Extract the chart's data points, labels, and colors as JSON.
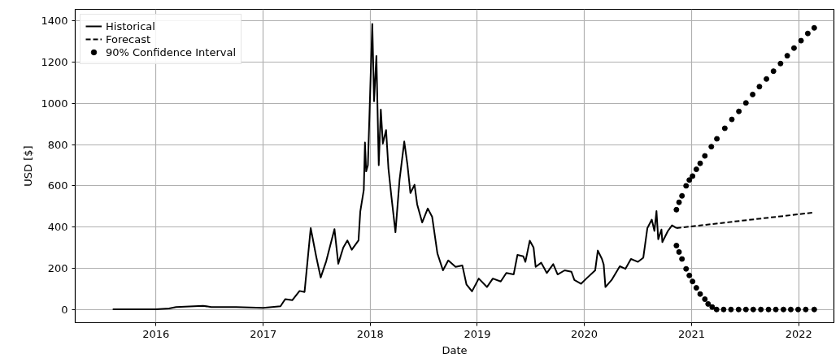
{
  "chart_data": {
    "type": "line",
    "xlabel": "Date",
    "ylabel": "USD [$]",
    "xlim": [
      "2015-04-01",
      "2022-05-01"
    ],
    "ylim": [
      -64,
      1456
    ],
    "xticks": [
      {
        "value": "2016-01-01",
        "label": "2016"
      },
      {
        "value": "2017-01-01",
        "label": "2017"
      },
      {
        "value": "2018-01-01",
        "label": "2018"
      },
      {
        "value": "2019-01-01",
        "label": "2019"
      },
      {
        "value": "2020-01-01",
        "label": "2020"
      },
      {
        "value": "2021-01-01",
        "label": "2021"
      },
      {
        "value": "2022-01-01",
        "label": "2022"
      }
    ],
    "yticks": [
      0,
      200,
      400,
      600,
      800,
      1000,
      1200,
      1400
    ],
    "grid": true,
    "legend": "top left",
    "series": [
      {
        "name": "Historical",
        "color": "#000000",
        "line_style": "solid",
        "x": [
          "2015-08-07",
          "2015-11-01",
          "2016-01-01",
          "2016-02-15",
          "2016-03-10",
          "2016-06-10",
          "2016-07-08",
          "2016-10-01",
          "2017-01-01",
          "2017-03-01",
          "2017-03-17",
          "2017-04-10",
          "2017-05-05",
          "2017-05-22",
          "2017-06-12",
          "2017-07-01",
          "2017-07-16",
          "2017-08-04",
          "2017-09-01",
          "2017-09-14",
          "2017-10-01",
          "2017-10-15",
          "2017-10-30",
          "2017-11-22",
          "2017-11-28",
          "2017-12-10",
          "2017-12-14",
          "2017-12-18",
          "2017-12-24",
          "2018-01-08",
          "2018-01-14",
          "2018-01-22",
          "2018-01-30",
          "2018-02-06",
          "2018-02-13",
          "2018-02-24",
          "2018-03-04",
          "2018-03-14",
          "2018-03-28",
          "2018-04-11",
          "2018-04-27",
          "2018-05-08",
          "2018-05-18",
          "2018-06-01",
          "2018-06-10",
          "2018-06-27",
          "2018-07-16",
          "2018-07-31",
          "2018-08-18",
          "2018-09-06",
          "2018-09-24",
          "2018-10-19",
          "2018-11-11",
          "2018-11-25",
          "2018-12-14",
          "2019-01-06",
          "2019-02-03",
          "2019-02-23",
          "2019-03-22",
          "2019-04-10",
          "2019-05-05",
          "2019-05-18",
          "2019-06-07",
          "2019-06-14",
          "2019-06-29",
          "2019-07-12",
          "2019-07-19",
          "2019-08-07",
          "2019-08-26",
          "2019-09-17",
          "2019-10-02",
          "2019-10-26",
          "2019-11-18",
          "2019-11-28",
          "2019-12-21",
          "2020-01-08",
          "2020-02-07",
          "2020-02-16",
          "2020-03-01",
          "2020-03-07",
          "2020-03-13",
          "2020-04-03",
          "2020-05-01",
          "2020-05-20",
          "2020-06-08",
          "2020-07-02",
          "2020-07-20",
          "2020-08-03",
          "2020-08-18",
          "2020-08-27",
          "2020-09-03",
          "2020-09-09",
          "2020-09-20",
          "2020-09-23",
          "2020-10-12",
          "2020-10-26",
          "2020-11-10"
        ],
        "values": [
          1,
          1,
          1,
          5,
          12,
          18,
          12,
          12,
          8,
          16,
          50,
          45,
          90,
          85,
          395,
          255,
          155,
          235,
          390,
          222,
          300,
          335,
          290,
          335,
          475,
          580,
          810,
          670,
          700,
          1385,
          1010,
          1230,
          700,
          970,
          805,
          870,
          685,
          550,
          375,
          630,
          815,
          700,
          565,
          605,
          510,
          422,
          490,
          450,
          272,
          190,
          238,
          207,
          214,
          122,
          88,
          150,
          109,
          150,
          136,
          177,
          170,
          265,
          258,
          231,
          334,
          300,
          207,
          227,
          177,
          220,
          170,
          190,
          183,
          143,
          125,
          150,
          190,
          286,
          245,
          218,
          109,
          143,
          210,
          197,
          245,
          231,
          251,
          395,
          436,
          381,
          477,
          341,
          388,
          327,
          381,
          408,
          395
        ]
      },
      {
        "name": "Forecast",
        "color": "#000000",
        "line_style": "dashed",
        "x": [
          "2020-11-10",
          "2022-02-21"
        ],
        "values": [
          395,
          470
        ]
      },
      {
        "name": "90% Confidence Interval",
        "color": "#000000",
        "type": "scatter",
        "marker": "circle",
        "x": [
          "2020-11-10",
          "2020-11-19",
          "2020-11-29",
          "2020-12-13",
          "2020-12-24",
          "2021-01-04",
          "2021-01-17",
          "2021-01-30",
          "2021-02-15",
          "2021-03-09",
          "2021-03-28",
          "2021-04-24",
          "2021-05-18",
          "2021-06-11",
          "2021-07-05",
          "2021-07-28",
          "2021-08-20",
          "2021-09-13",
          "2021-10-07",
          "2021-10-31",
          "2021-11-23",
          "2021-12-16",
          "2022-01-09",
          "2022-02-01",
          "2022-02-23",
          "2020-11-10",
          "2020-11-19",
          "2020-11-29",
          "2020-12-13",
          "2020-12-24",
          "2021-01-04",
          "2021-01-17",
          "2021-01-30",
          "2021-02-15",
          "2021-02-26",
          "2021-03-12",
          "2021-03-27",
          "2021-04-20",
          "2021-05-15",
          "2021-06-10",
          "2021-07-05",
          "2021-07-30",
          "2021-08-25",
          "2021-09-20",
          "2021-10-15",
          "2021-11-10",
          "2021-12-05",
          "2021-12-30",
          "2022-01-25",
          "2022-02-23"
        ],
        "values": [
          484,
          520,
          551,
          600,
          628,
          647,
          680,
          709,
          745,
          790,
          828,
          879,
          922,
          961,
          1002,
          1043,
          1081,
          1118,
          1156,
          1193,
          1231,
          1268,
          1304,
          1339,
          1366,
          310,
          279,
          245,
          197,
          165,
          136,
          105,
          75,
          50,
          27,
          12,
          0,
          0,
          0,
          0,
          0,
          0,
          0,
          0,
          0,
          0,
          0,
          0,
          0,
          0
        ]
      }
    ]
  }
}
